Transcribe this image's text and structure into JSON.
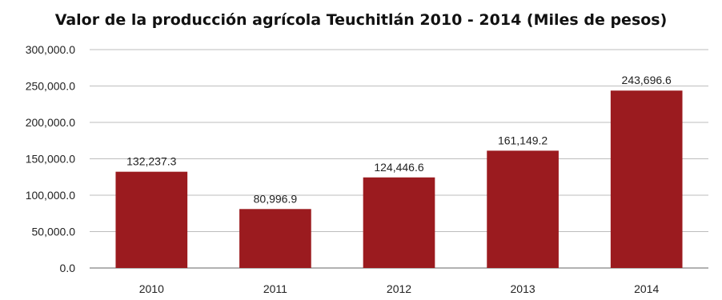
{
  "chart_data": {
    "type": "bar",
    "title": "Valor de la producción agrícola Teuchitlán 2010 - 2014 (Miles de pesos)",
    "xlabel": "",
    "ylabel": "",
    "categories": [
      "2010",
      "2011",
      "2012",
      "2013",
      "2014"
    ],
    "values": [
      132237.3,
      80996.9,
      124446.6,
      161149.2,
      243696.6
    ],
    "data_labels": [
      "132,237.3",
      "80,996.9",
      "124,446.6",
      "161,149.2",
      "243,696.6"
    ],
    "ylim": [
      0,
      300000
    ],
    "yticks": [
      0,
      50000,
      100000,
      150000,
      200000,
      250000,
      300000
    ],
    "ytick_labels": [
      "0.0",
      "50,000.0",
      "100,000.0",
      "150,000.0",
      "200,000.0",
      "250,000.0",
      "300,000.0"
    ],
    "grid": true,
    "legend": "none",
    "colors": {
      "bar": "#9b1b1f",
      "grid": "#bdbdbd",
      "axis": "#999999"
    }
  }
}
